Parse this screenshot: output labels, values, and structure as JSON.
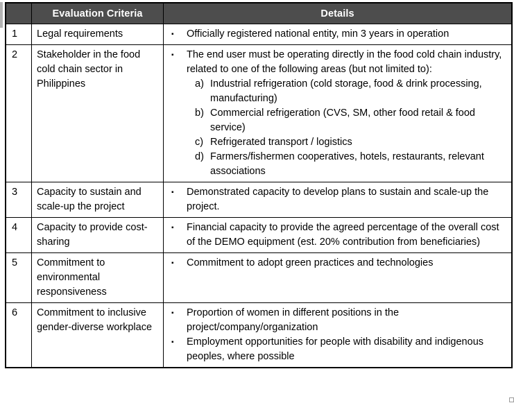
{
  "colors": {
    "header_bg": "#4d4d4d",
    "header_text": "#ffffff",
    "border": "#000000"
  },
  "icons": {
    "bullet": "▪",
    "resize_handle": "table-resize-handle"
  },
  "table": {
    "headers": [
      "",
      "Evaluation Criteria",
      "Details"
    ],
    "rows": [
      {
        "num": "1",
        "criteria": "Legal requirements",
        "details": [
          {
            "text": "Officially registered national entity, min 3 years in operation"
          }
        ]
      },
      {
        "num": "2",
        "criteria": "Stakeholder in the food cold chain sector in Philippines",
        "details": [
          {
            "text": "The end user must be operating directly in the food cold chain industry, related to one of the following areas (but not limited to):",
            "subitems": [
              {
                "label": "a)",
                "text": "Industrial refrigeration (cold storage, food & drink processing, manufacturing)"
              },
              {
                "label": "b)",
                "text": "Commercial refrigeration (CVS, SM, other food retail & food service)"
              },
              {
                "label": "c)",
                "text": "Refrigerated transport / logistics"
              },
              {
                "label": "d)",
                "text": "Farmers/fishermen cooperatives, hotels, restaurants, relevant associations"
              }
            ]
          }
        ]
      },
      {
        "num": "3",
        "criteria": "Capacity to sustain and scale-up the project",
        "details": [
          {
            "text": "Demonstrated capacity to develop plans to sustain and scale-up the project."
          }
        ]
      },
      {
        "num": "4",
        "criteria": "Capacity to provide cost-sharing",
        "details": [
          {
            "text": "Financial capacity to provide the agreed percentage of the overall cost of the DEMO equipment (est. 20% contribution from beneficiaries)"
          }
        ]
      },
      {
        "num": "5",
        "criteria": "Commitment to environmental responsiveness",
        "details": [
          {
            "text": "Commitment to adopt green practices and technologies"
          }
        ]
      },
      {
        "num": "6",
        "criteria": "Commitment to inclusive gender-diverse workplace",
        "details": [
          {
            "text": "Proportion of women in different positions in the project/company/organization"
          },
          {
            "text": "Employment opportunities for people with disability and indigenous peoples, where possible"
          }
        ]
      }
    ]
  }
}
